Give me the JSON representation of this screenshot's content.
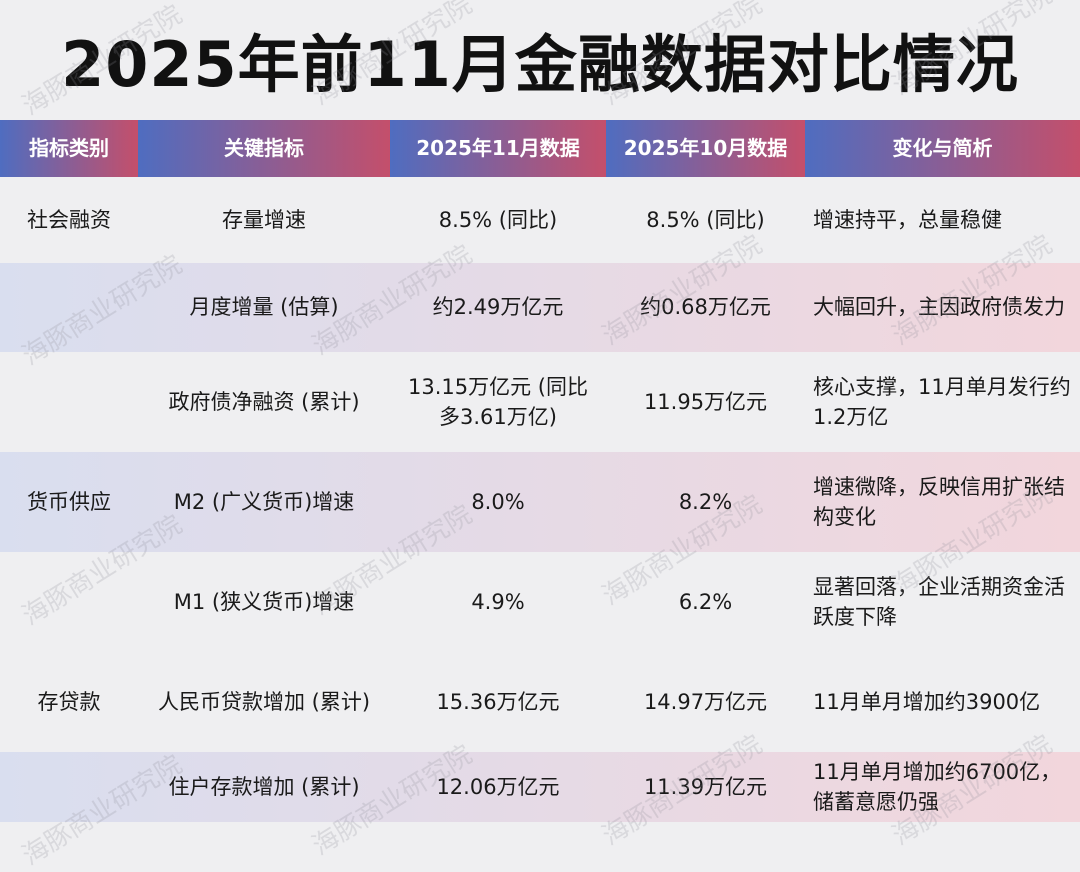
{
  "title": "2025年前11月金融数据对比情况",
  "watermark": "海豚商业研究院",
  "table": {
    "headers": [
      "指标类别",
      "关键指标",
      "2025年11月数据",
      "2025年10月数据",
      "变化与简析"
    ],
    "rows": [
      {
        "category": "社会融资",
        "indicator": "存量增速",
        "nov": "8.5% (同比)",
        "oct": "8.5% (同比)",
        "change": "增速持平，总量稳健"
      },
      {
        "indicator": "月度增量 (估算)",
        "nov": "约2.49万亿元",
        "oct": "约0.68万亿元",
        "change": "大幅回升，主因政府债发力"
      },
      {
        "indicator": "政府债净融资 (累计)",
        "nov": "13.15万亿元 (同比多3.61万亿)",
        "oct": "11.95万亿元",
        "change": "核心支撑，11月单月发行约1.2万亿"
      },
      {
        "category": "货币供应",
        "indicator": "M2 (广义货币)增速",
        "nov": "8.0%",
        "oct": "8.2%",
        "change": "增速微降，反映信用扩张结构变化"
      },
      {
        "indicator": "M1 (狭义货币)增速",
        "nov": "4.9%",
        "oct": "6.2%",
        "change": "显著回落，企业活期资金活跃度下降"
      },
      {
        "category": "存贷款",
        "indicator": "人民币贷款增加 (累计)",
        "nov": "15.36万亿元",
        "oct": "14.97万亿元",
        "change": "11月单月增加约3900亿"
      },
      {
        "indicator": "住户存款增加 (累计)",
        "nov": "12.06万亿元",
        "oct": "11.39万亿元",
        "change": "11月单月增加约6700亿，储蓄意愿仍强"
      }
    ]
  }
}
